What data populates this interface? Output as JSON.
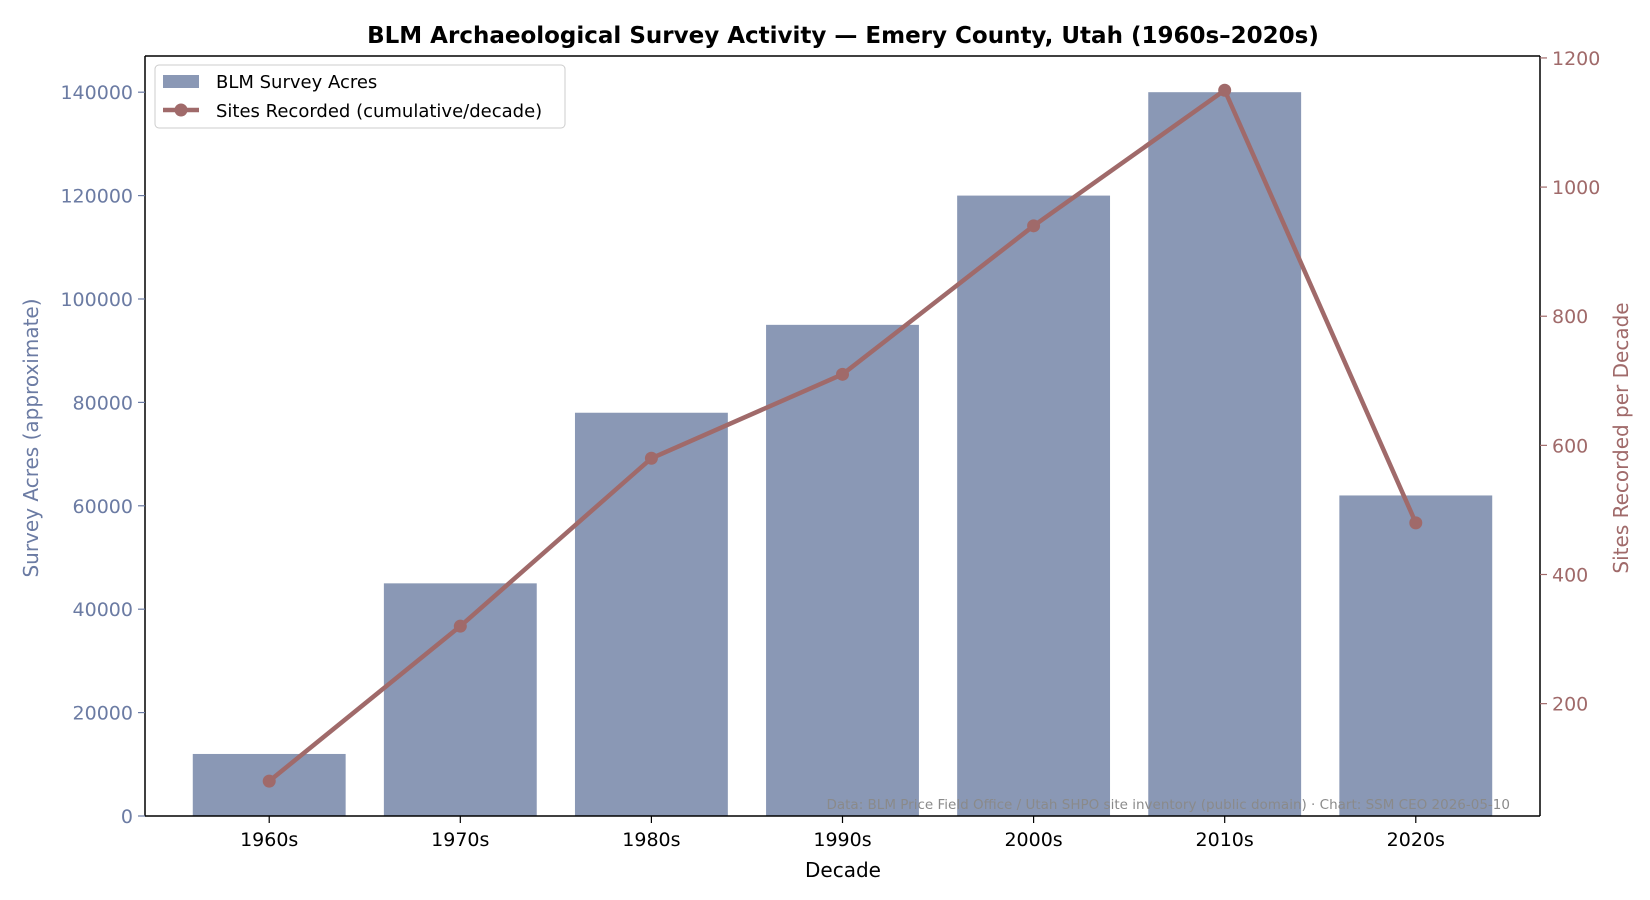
{
  "chart_data": {
    "type": "bar+line",
    "title": "BLM Archaeological Survey Activity — Emery County, Utah (1960s–2020s)",
    "xlabel": "Decade",
    "ylabel_left": "Survey Acres (approximate)",
    "ylabel_right": "Sites Recorded per Decade",
    "categories": [
      "1960s",
      "1970s",
      "1980s",
      "1990s",
      "2000s",
      "2010s",
      "2020s"
    ],
    "series": [
      {
        "name": "BLM Survey Acres",
        "type": "bar",
        "axis": "left",
        "color": "#8a98b5",
        "values": [
          12000,
          45000,
          78000,
          95000,
          120000,
          140000,
          62000
        ]
      },
      {
        "name": "Sites Recorded (cumulative/decade)",
        "type": "line",
        "axis": "right",
        "color": "#a06a6a",
        "values": [
          80,
          320,
          580,
          710,
          940,
          1150,
          480
        ]
      }
    ],
    "ylim_left": [
      0,
      147000
    ],
    "yticks_left": [
      0,
      20000,
      40000,
      60000,
      80000,
      100000,
      120000,
      140000
    ],
    "ylim_right": [
      26,
      1203
    ],
    "yticks_right": [
      200,
      400,
      600,
      800,
      1000,
      1200
    ],
    "left_axis_color": "#6b7ba3",
    "right_axis_color": "#a06a6a",
    "grid": false,
    "legend_position": "upper-left",
    "source_note": "Data: BLM Price Field Office / Utah SHPO site inventory (public domain) · Chart: SSM CEO 2026-05-10"
  }
}
